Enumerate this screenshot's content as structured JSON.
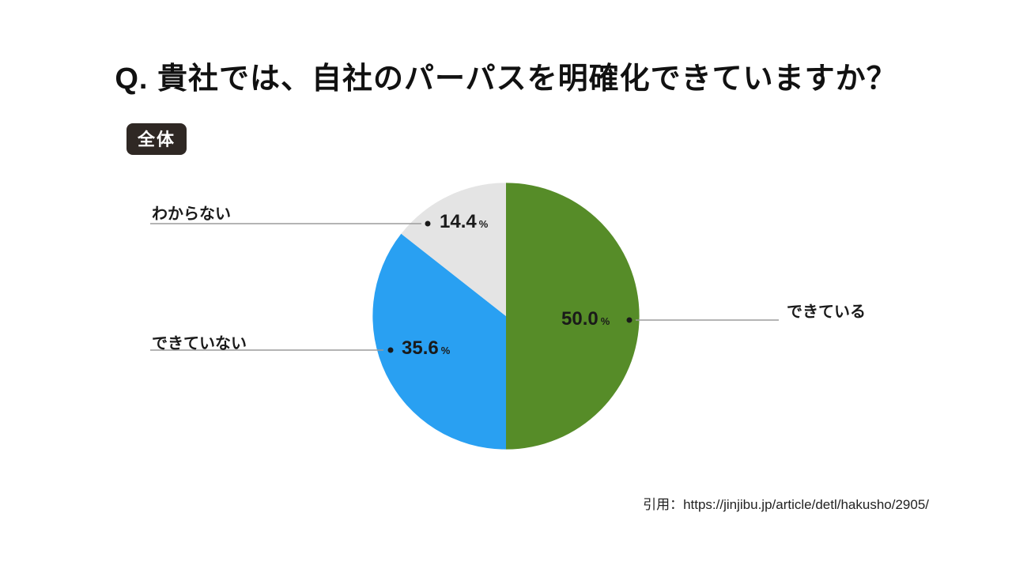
{
  "header": {
    "title": "Q. 貴社では、自社のパーパスを明確化できていますか？",
    "scope_badge": "全体"
  },
  "chart_data": {
    "type": "pie",
    "title": "Q. 貴社では、自社のパーパスを明確化できていますか？",
    "scope": "全体",
    "start_angle_deg": -90,
    "direction": "clockwise",
    "legend_position": "callout-labels",
    "segments": [
      {
        "label": "できている",
        "value": 50.0,
        "display": "50.0",
        "unit": "%",
        "color": "#568c28"
      },
      {
        "label": "できていない",
        "value": 35.6,
        "display": "35.6",
        "unit": "%",
        "color": "#29a0f2"
      },
      {
        "label": "わからない",
        "value": 14.4,
        "display": "14.4",
        "unit": "%",
        "color": "#e4e4e4"
      }
    ]
  },
  "citation": {
    "text": "引用：https://jinjibu.jp/article/detl/hakusho/2905/"
  },
  "colors": {
    "leader_line": "#9b9b9b",
    "dot": "#1a1a1a"
  }
}
